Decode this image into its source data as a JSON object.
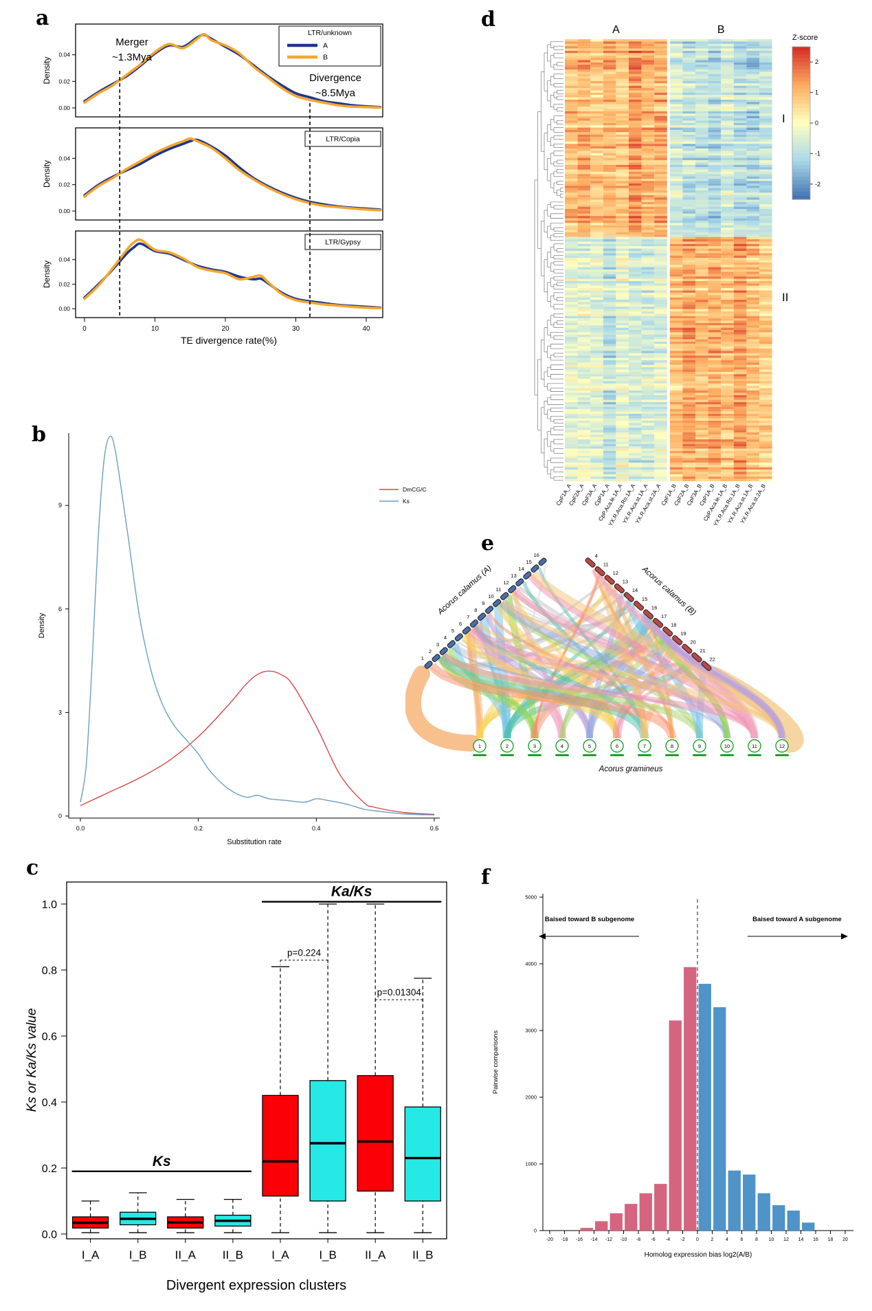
{
  "panels": {
    "a": {
      "label": "a"
    },
    "b": {
      "label": "b"
    },
    "c": {
      "label": "c"
    },
    "d": {
      "label": "d"
    },
    "e": {
      "label": "e"
    },
    "f": {
      "label": "f"
    }
  },
  "chart_data": [
    {
      "id": "a",
      "type": "line",
      "kind": "density-triptych",
      "xlabel": "TE divergence rate(%)",
      "ylabel": "Density",
      "x_ticks": [
        0,
        10,
        20,
        30,
        40
      ],
      "y_ticks": [
        "0.00",
        "0.02",
        "0.04"
      ],
      "annotations": {
        "merger": {
          "text": [
            "Merger",
            "~1.3Mya"
          ],
          "x": 5
        },
        "divergence": {
          "text": [
            "Divergence",
            "~8.5Mya"
          ],
          "x": 32
        }
      },
      "subplots": [
        {
          "title": "LTR/unknown",
          "series": [
            {
              "name": "A",
              "color": "#20348c",
              "x": [
                0,
                2,
                4,
                6,
                8,
                10,
                12,
                14,
                16,
                17,
                18,
                20,
                22,
                24,
                26,
                28,
                30,
                32,
                34,
                36,
                38,
                40,
                42
              ],
              "y": [
                0.005,
                0.012,
                0.018,
                0.024,
                0.032,
                0.041,
                0.047,
                0.046,
                0.053,
                0.055,
                0.052,
                0.046,
                0.04,
                0.032,
                0.024,
                0.017,
                0.011,
                0.008,
                0.005,
                0.0035,
                0.002,
                0.0012,
                0.0006
              ]
            },
            {
              "name": "B",
              "color": "#f2a72e",
              "x": [
                0,
                2,
                4,
                6,
                8,
                10,
                12,
                14,
                16,
                17,
                18,
                20,
                22,
                24,
                26,
                28,
                30,
                32,
                34,
                36,
                38,
                40,
                42
              ],
              "y": [
                0.004,
                0.011,
                0.017,
                0.025,
                0.033,
                0.042,
                0.048,
                0.045,
                0.052,
                0.0555,
                0.051,
                0.047,
                0.041,
                0.031,
                0.023,
                0.015,
                0.009,
                0.006,
                0.004,
                0.002,
                0.001,
                0.0006,
                0.0003
              ]
            }
          ]
        },
        {
          "title": "LTR/Copia",
          "series": [
            {
              "name": "A",
              "color": "#20348c",
              "x": [
                0,
                2,
                4,
                6,
                8,
                10,
                12,
                14,
                15,
                16,
                18,
                20,
                22,
                24,
                26,
                28,
                30,
                32,
                34,
                36,
                38,
                40,
                42
              ],
              "y": [
                0.012,
                0.02,
                0.026,
                0.031,
                0.036,
                0.042,
                0.047,
                0.051,
                0.053,
                0.054,
                0.049,
                0.042,
                0.033,
                0.025,
                0.019,
                0.014,
                0.01,
                0.007,
                0.005,
                0.0035,
                0.0025,
                0.0018,
                0.001
              ]
            },
            {
              "name": "B",
              "color": "#f2a72e",
              "x": [
                0,
                2,
                4,
                6,
                8,
                10,
                12,
                14,
                15,
                16,
                18,
                20,
                22,
                24,
                26,
                28,
                30,
                32,
                34,
                36,
                38,
                40,
                42
              ],
              "y": [
                0.011,
                0.019,
                0.025,
                0.032,
                0.038,
                0.044,
                0.049,
                0.053,
                0.055,
                0.053,
                0.048,
                0.04,
                0.031,
                0.024,
                0.018,
                0.013,
                0.009,
                0.006,
                0.004,
                0.003,
                0.002,
                0.0012,
                0.0006
              ]
            }
          ]
        },
        {
          "title": "LTR/Gypsy",
          "series": [
            {
              "name": "A",
              "color": "#20348c",
              "x": [
                0,
                2,
                4,
                6,
                7,
                8,
                10,
                12,
                14,
                16,
                18,
                20,
                22,
                24,
                25,
                26,
                28,
                30,
                32,
                34,
                36,
                38,
                40,
                42
              ],
              "y": [
                0.009,
                0.02,
                0.032,
                0.045,
                0.05,
                0.053,
                0.047,
                0.045,
                0.04,
                0.035,
                0.032,
                0.03,
                0.026,
                0.024,
                0.0245,
                0.021,
                0.013,
                0.008,
                0.006,
                0.0045,
                0.003,
                0.0022,
                0.0015,
                0.0008
              ]
            },
            {
              "name": "B",
              "color": "#f2a72e",
              "x": [
                0,
                2,
                4,
                6,
                7,
                8,
                10,
                12,
                14,
                16,
                18,
                20,
                22,
                24,
                25,
                26,
                28,
                30,
                32,
                34,
                36,
                38,
                40,
                42
              ],
              "y": [
                0.008,
                0.019,
                0.033,
                0.048,
                0.054,
                0.056,
                0.048,
                0.046,
                0.041,
                0.034,
                0.031,
                0.029,
                0.024,
                0.026,
                0.027,
                0.022,
                0.012,
                0.007,
                0.005,
                0.0035,
                0.0025,
                0.0015,
                0.0008,
                0.0004
              ]
            }
          ]
        }
      ]
    },
    {
      "id": "b",
      "type": "line",
      "kind": "density",
      "xlabel": "Substitution rate",
      "ylabel": "Density",
      "x_ticks": [
        0.0,
        0.2,
        0.4,
        0.6
      ],
      "y_ticks": [
        0,
        3,
        6,
        9
      ],
      "series": [
        {
          "name": "DmCG/C",
          "color": "#d14949",
          "x": [
            0,
            0.05,
            0.1,
            0.15,
            0.2,
            0.25,
            0.28,
            0.3,
            0.32,
            0.34,
            0.36,
            0.4,
            0.44,
            0.48,
            0.5,
            0.55,
            0.6
          ],
          "y": [
            0.3,
            0.7,
            1.1,
            1.6,
            2.3,
            3.2,
            3.8,
            4.1,
            4.2,
            4.1,
            3.8,
            2.6,
            1.2,
            0.4,
            0.25,
            0.1,
            0.05
          ]
        },
        {
          "name": "Ks",
          "color": "#6b9ec2",
          "x": [
            0,
            0.01,
            0.02,
            0.03,
            0.04,
            0.05,
            0.06,
            0.08,
            0.1,
            0.12,
            0.14,
            0.16,
            0.18,
            0.2,
            0.22,
            0.25,
            0.28,
            0.3,
            0.32,
            0.35,
            0.38,
            0.4,
            0.42,
            0.45,
            0.48,
            0.5,
            0.55,
            0.6
          ],
          "y": [
            0.4,
            1.5,
            4.5,
            8.0,
            10.3,
            11.0,
            10.5,
            8.2,
            5.8,
            4.2,
            3.2,
            2.6,
            2.2,
            1.8,
            1.3,
            0.8,
            0.55,
            0.6,
            0.5,
            0.45,
            0.4,
            0.5,
            0.45,
            0.35,
            0.2,
            0.15,
            0.06,
            0.03
          ]
        }
      ]
    },
    {
      "id": "c",
      "type": "box",
      "xlabel": "Divergent expression clusters",
      "ylabel": "Ks or Ka/Ks value",
      "y_ticks": [
        "0.0",
        "0.2",
        "0.4",
        "0.6",
        "0.8",
        "1.0"
      ],
      "categories": [
        "I_A",
        "I_B",
        "II_A",
        "II_B",
        "I_A",
        "I_B",
        "II_A",
        "II_B"
      ],
      "box_colors": [
        "#fb0007",
        "#26e8e4",
        "#fb0007",
        "#26e8e4",
        "#fb0007",
        "#26e8e4",
        "#fb0007",
        "#26e8e4"
      ],
      "boxes": [
        {
          "low": 0.004,
          "q1": 0.018,
          "median": 0.034,
          "q3": 0.052,
          "high": 0.1
        },
        {
          "low": 0.004,
          "q1": 0.028,
          "median": 0.046,
          "q3": 0.066,
          "high": 0.125
        },
        {
          "low": 0.004,
          "q1": 0.018,
          "median": 0.035,
          "q3": 0.052,
          "high": 0.105
        },
        {
          "low": 0.004,
          "q1": 0.024,
          "median": 0.04,
          "q3": 0.057,
          "high": 0.105
        },
        {
          "low": 0.004,
          "q1": 0.115,
          "median": 0.22,
          "q3": 0.42,
          "high": 0.81
        },
        {
          "low": 0.004,
          "q1": 0.1,
          "median": 0.275,
          "q3": 0.465,
          "high": 1.0
        },
        {
          "low": 0.004,
          "q1": 0.13,
          "median": 0.28,
          "q3": 0.48,
          "high": 1.0
        },
        {
          "low": 0.004,
          "q1": 0.1,
          "median": 0.23,
          "q3": 0.385,
          "high": 0.775
        }
      ],
      "group_labels": [
        {
          "text": "Ks",
          "span": [
            0,
            3
          ],
          "line_y": 0.19
        },
        {
          "text": "Ka/Ks",
          "span": [
            4,
            7
          ],
          "line_y": 1.007
        }
      ],
      "p_values": [
        {
          "text": "p=0.224",
          "between": [
            4,
            5
          ],
          "y": 0.83
        },
        {
          "text": "p=0.01304",
          "between": [
            6,
            7
          ],
          "y": 0.71
        }
      ]
    },
    {
      "id": "d",
      "type": "heatmap",
      "group_labels": [
        "A",
        "B"
      ],
      "cluster_labels": [
        "I",
        "II"
      ],
      "colorbar": {
        "title": "Z-score",
        "ticks": [
          "2",
          "1",
          "0",
          "-1",
          "-2"
        ],
        "domain": [
          -2.5,
          2.5
        ],
        "stops": [
          "#4575b4",
          "#abd9e9",
          "#ffffbf",
          "#fdae61",
          "#d73027"
        ]
      },
      "columns": [
        "CpF1A_A",
        "CpF2A_A",
        "CpF3A_A",
        "CpP1A_A",
        "CpP.Aca.le.1A_A",
        "YX.R.Aca.Ro.1A_A",
        "YX.R.Aca.st.1A_A",
        "YX.R.Aca.st.2A_A",
        "CpF1A_B",
        "CpF2A_B",
        "CpF3A_B",
        "CpP1A_B",
        "CpP.Aca.le.1A_B",
        "YX.R.Aca.Ro.1A_B",
        "YX.R.Aca.st.1A_B",
        "YX.R.Aca.st.2A_B"
      ],
      "n_rows": 190,
      "cluster_split": 85,
      "cluster_means": {
        "I": {
          "A": 1.15,
          "B": -0.85
        },
        "II": {
          "A": -0.65,
          "B": 1.0
        }
      },
      "noise": 0.5,
      "seed": 7
    },
    {
      "id": "e",
      "type": "sankey",
      "top_left": {
        "label": "Acorus calamus (A)",
        "color": "#3a62a8",
        "bar_color": "#4a6fa8",
        "segments": [
          "1",
          "2",
          "3",
          "4",
          "5",
          "6",
          "7",
          "8",
          "9",
          "10",
          "11",
          "12",
          "13",
          "14",
          "15",
          "16"
        ]
      },
      "top_right": {
        "label": "Acorus calamus (B)",
        "color": "#c0504d",
        "bar_color": "#b94a48",
        "segments": [
          "4",
          "11",
          "12",
          "13",
          "14",
          "15",
          "16",
          "17",
          "18",
          "19",
          "20",
          "21",
          "22"
        ]
      },
      "bottom": {
        "label": "Acorus gramineus",
        "color": "#1da227",
        "segments": [
          "1",
          "2",
          "3",
          "4",
          "5",
          "6",
          "7",
          "8",
          "9",
          "10",
          "11",
          "12"
        ]
      },
      "palette": [
        "#f5a55c",
        "#6fc3e8",
        "#8ed44f",
        "#f2a9c4",
        "#b79fe0",
        "#f7d154",
        "#52bfae",
        "#fb8c6a",
        "#a5d46a",
        "#97a7e0",
        "#ef8fb0",
        "#f3c37b"
      ],
      "gray": "#cccccc",
      "seed": 11
    },
    {
      "id": "f",
      "type": "bar",
      "xlabel": "Homolog expression bias log2(A/B)",
      "ylabel": "Pairwise comparisons",
      "x_ticks": [
        -20,
        -18,
        -16,
        -14,
        -12,
        -10,
        -8,
        -6,
        -4,
        -2,
        0,
        2,
        4,
        6,
        8,
        10,
        12,
        14,
        16,
        18,
        20
      ],
      "y_ticks": [
        0,
        1000,
        2000,
        3000,
        4000,
        5000
      ],
      "annotations": {
        "left": "Baised toward B subgenome",
        "right": "Baised toward A subgenome"
      },
      "colors": {
        "b_bias": "#d5647e",
        "a_bias": "#4f93c8"
      },
      "bin_width": 1.7,
      "bars": [
        {
          "x": -15,
          "value": 40
        },
        {
          "x": -13,
          "value": 140
        },
        {
          "x": -11,
          "value": 260
        },
        {
          "x": -9,
          "value": 400
        },
        {
          "x": -7,
          "value": 560
        },
        {
          "x": -5,
          "value": 700
        },
        {
          "x": -3,
          "value": 3150
        },
        {
          "x": -1,
          "value": 3950
        },
        {
          "x": 1,
          "value": 3700
        },
        {
          "x": 3,
          "value": 3350
        },
        {
          "x": 5,
          "value": 900
        },
        {
          "x": 7,
          "value": 840
        },
        {
          "x": 9,
          "value": 560
        },
        {
          "x": 11,
          "value": 380
        },
        {
          "x": 13,
          "value": 300
        },
        {
          "x": 15,
          "value": 120
        }
      ]
    }
  ]
}
